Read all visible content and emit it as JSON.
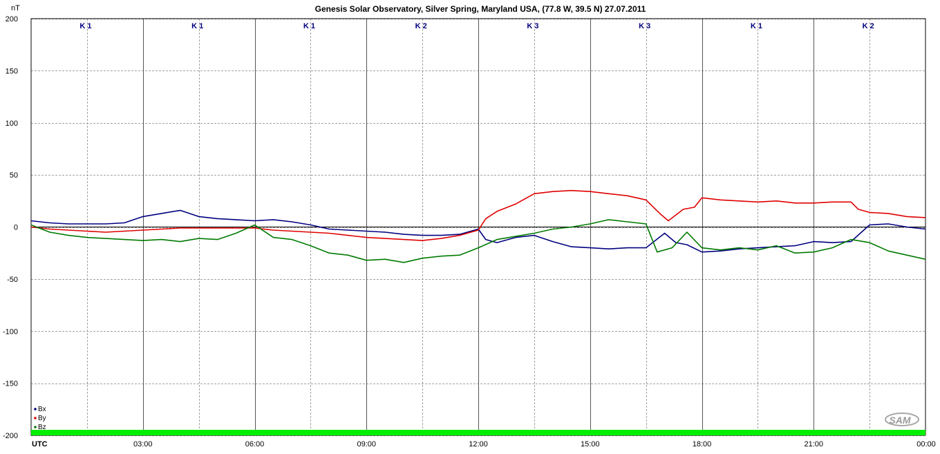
{
  "chart_data": {
    "type": "line",
    "title": "Genesis Solar Observatory, Silver Spring, Maryland USA, (77.8 W, 39.5 N)  27.07.2011",
    "ylabel": "nT",
    "xlabel": "UTC",
    "ylim": [
      -200,
      200
    ],
    "xlim": [
      0,
      24
    ],
    "y_ticks": [
      "200",
      "150",
      "100",
      "50",
      "0",
      "-50",
      "-100",
      "-150",
      "-200"
    ],
    "x_ticks": [
      "UTC",
      "03:00",
      "06:00",
      "09:00",
      "12:00",
      "15:00",
      "18:00",
      "21:00",
      "00:00"
    ],
    "k_index": [
      "K 1",
      "K 1",
      "K 1",
      "K 2",
      "K 3",
      "K 3",
      "K 1",
      "K 2"
    ],
    "grid": true,
    "legend_position": "bottom-left",
    "colors": {
      "Bx": "#000080",
      "By": "#e00000",
      "Bz": "#007a00",
      "status_bar": "#00ee00"
    },
    "logo": "SAM",
    "series": [
      {
        "name": "Bx",
        "x": [
          0,
          0.5,
          1,
          1.5,
          2,
          2.5,
          3,
          3.5,
          4,
          4.5,
          5,
          5.5,
          6,
          6.5,
          7,
          7.5,
          8,
          8.5,
          9,
          9.5,
          10,
          10.5,
          11,
          11.5,
          12,
          12.2,
          12.5,
          13,
          13.5,
          14,
          14.5,
          15,
          15.5,
          16,
          16.5,
          17,
          17.3,
          17.6,
          18,
          18.5,
          19,
          19.5,
          20,
          20.5,
          21,
          21.5,
          22,
          22.5,
          23,
          23.5,
          24
        ],
        "values": [
          6,
          4,
          3,
          3,
          3,
          4,
          10,
          13,
          16,
          10,
          8,
          7,
          6,
          7,
          5,
          2,
          -2,
          -3,
          -4,
          -5,
          -7,
          -8,
          -8,
          -7,
          -2,
          -12,
          -15,
          -10,
          -8,
          -14,
          -19,
          -20,
          -21,
          -20,
          -20,
          -6,
          -15,
          -17,
          -24,
          -23,
          -21,
          -20,
          -19,
          -18,
          -14,
          -15,
          -14,
          2,
          3,
          0,
          -2
        ]
      },
      {
        "name": "By",
        "x": [
          0,
          0.5,
          1,
          1.5,
          2,
          2.5,
          3,
          3.5,
          4,
          4.5,
          5,
          5.5,
          6,
          6.5,
          7,
          7.5,
          8,
          8.5,
          9,
          9.5,
          10,
          10.5,
          11,
          11.5,
          12,
          12.2,
          12.5,
          13,
          13.5,
          14,
          14.5,
          15,
          15.5,
          16,
          16.5,
          16.9,
          17.1,
          17.5,
          17.8,
          18,
          18.5,
          19,
          19.5,
          20,
          20.5,
          21,
          21.5,
          22,
          22.2,
          22.5,
          23,
          23.5,
          24
        ],
        "values": [
          0,
          -2,
          -3,
          -4,
          -5,
          -4,
          -3,
          -2,
          -1,
          -1,
          -1,
          -1,
          -1,
          -3,
          -4,
          -5,
          -6,
          -8,
          -10,
          -11,
          -12,
          -13,
          -11,
          -8,
          -3,
          8,
          15,
          22,
          32,
          34,
          35,
          34,
          32,
          30,
          26,
          12,
          6,
          17,
          19,
          28,
          26,
          25,
          24,
          25,
          23,
          23,
          24,
          24,
          17,
          14,
          13,
          10,
          9
        ]
      },
      {
        "name": "Bz",
        "x": [
          0,
          0.5,
          1,
          1.5,
          2,
          2.5,
          3,
          3.5,
          4,
          4.5,
          5,
          5.5,
          6,
          6.5,
          7,
          7.5,
          8,
          8.5,
          9,
          9.5,
          10,
          10.5,
          11,
          11.5,
          12,
          12.5,
          13,
          13.5,
          14,
          14.5,
          15,
          15.5,
          16,
          16.5,
          16.8,
          17.2,
          17.6,
          18,
          18.5,
          19,
          19.5,
          20,
          20.5,
          21,
          21.5,
          22,
          22.5,
          23,
          23.5,
          24
        ],
        "values": [
          2,
          -5,
          -8,
          -10,
          -11,
          -12,
          -13,
          -12,
          -14,
          -11,
          -12,
          -6,
          2,
          -10,
          -12,
          -18,
          -25,
          -27,
          -32,
          -31,
          -34,
          -30,
          -28,
          -27,
          -20,
          -12,
          -9,
          -6,
          -2,
          0,
          3,
          7,
          5,
          3,
          -24,
          -20,
          -5,
          -20,
          -22,
          -20,
          -22,
          -18,
          -25,
          -24,
          -20,
          -12,
          -15,
          -23,
          -27,
          -31
        ]
      }
    ]
  }
}
